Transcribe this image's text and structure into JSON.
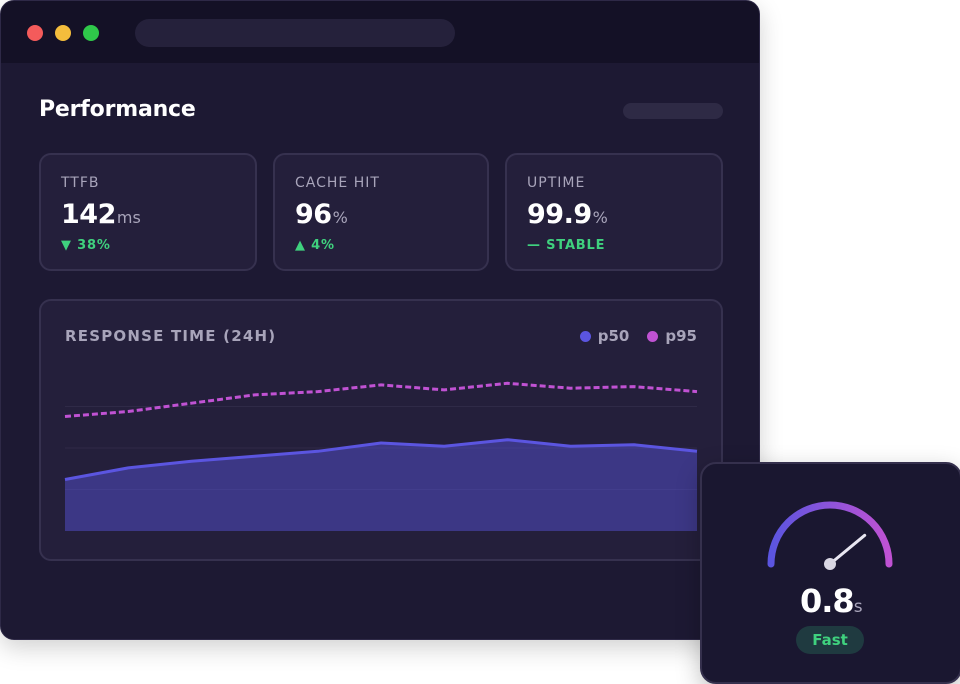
{
  "page": {
    "title": "Performance"
  },
  "metrics": [
    {
      "label": "TTFB",
      "value": "142",
      "unit": "ms",
      "delta_icon": "arrow-down-icon",
      "delta": "▼ 38%"
    },
    {
      "label": "CACHE HIT",
      "value": "96",
      "unit": "%",
      "delta_icon": "arrow-up-icon",
      "delta": "▲ 4%"
    },
    {
      "label": "UPTIME",
      "value": "99.9",
      "unit": "%",
      "delta_icon": "dash-icon",
      "delta": "— STABLE"
    }
  ],
  "chart_data": {
    "type": "area",
    "title": "RESPONSE TIME (24H)",
    "x": [
      0,
      1,
      2,
      3,
      4,
      5,
      6,
      7,
      8,
      9,
      10
    ],
    "ylim": [
      0,
      1
    ],
    "legend_position": "top-right",
    "grid": true,
    "series": [
      {
        "name": "p50",
        "color": "#5b55e0",
        "style": "solid-area",
        "values": [
          0.31,
          0.38,
          0.42,
          0.45,
          0.48,
          0.53,
          0.51,
          0.55,
          0.51,
          0.52,
          0.48
        ]
      },
      {
        "name": "p95",
        "color": "#c052d3",
        "style": "dashed",
        "values": [
          0.69,
          0.72,
          0.77,
          0.82,
          0.84,
          0.88,
          0.85,
          0.89,
          0.86,
          0.87,
          0.84
        ]
      }
    ]
  },
  "gauge": {
    "value": "0.8",
    "unit": "s",
    "level": 0.78,
    "status": "Fast",
    "status_color": "#3fd17e",
    "gradient": [
      "#5b55e0",
      "#c052d3"
    ]
  },
  "colors": {
    "background": "#1d1933",
    "card": "#241f3b",
    "accent_green": "#3fd17e"
  }
}
